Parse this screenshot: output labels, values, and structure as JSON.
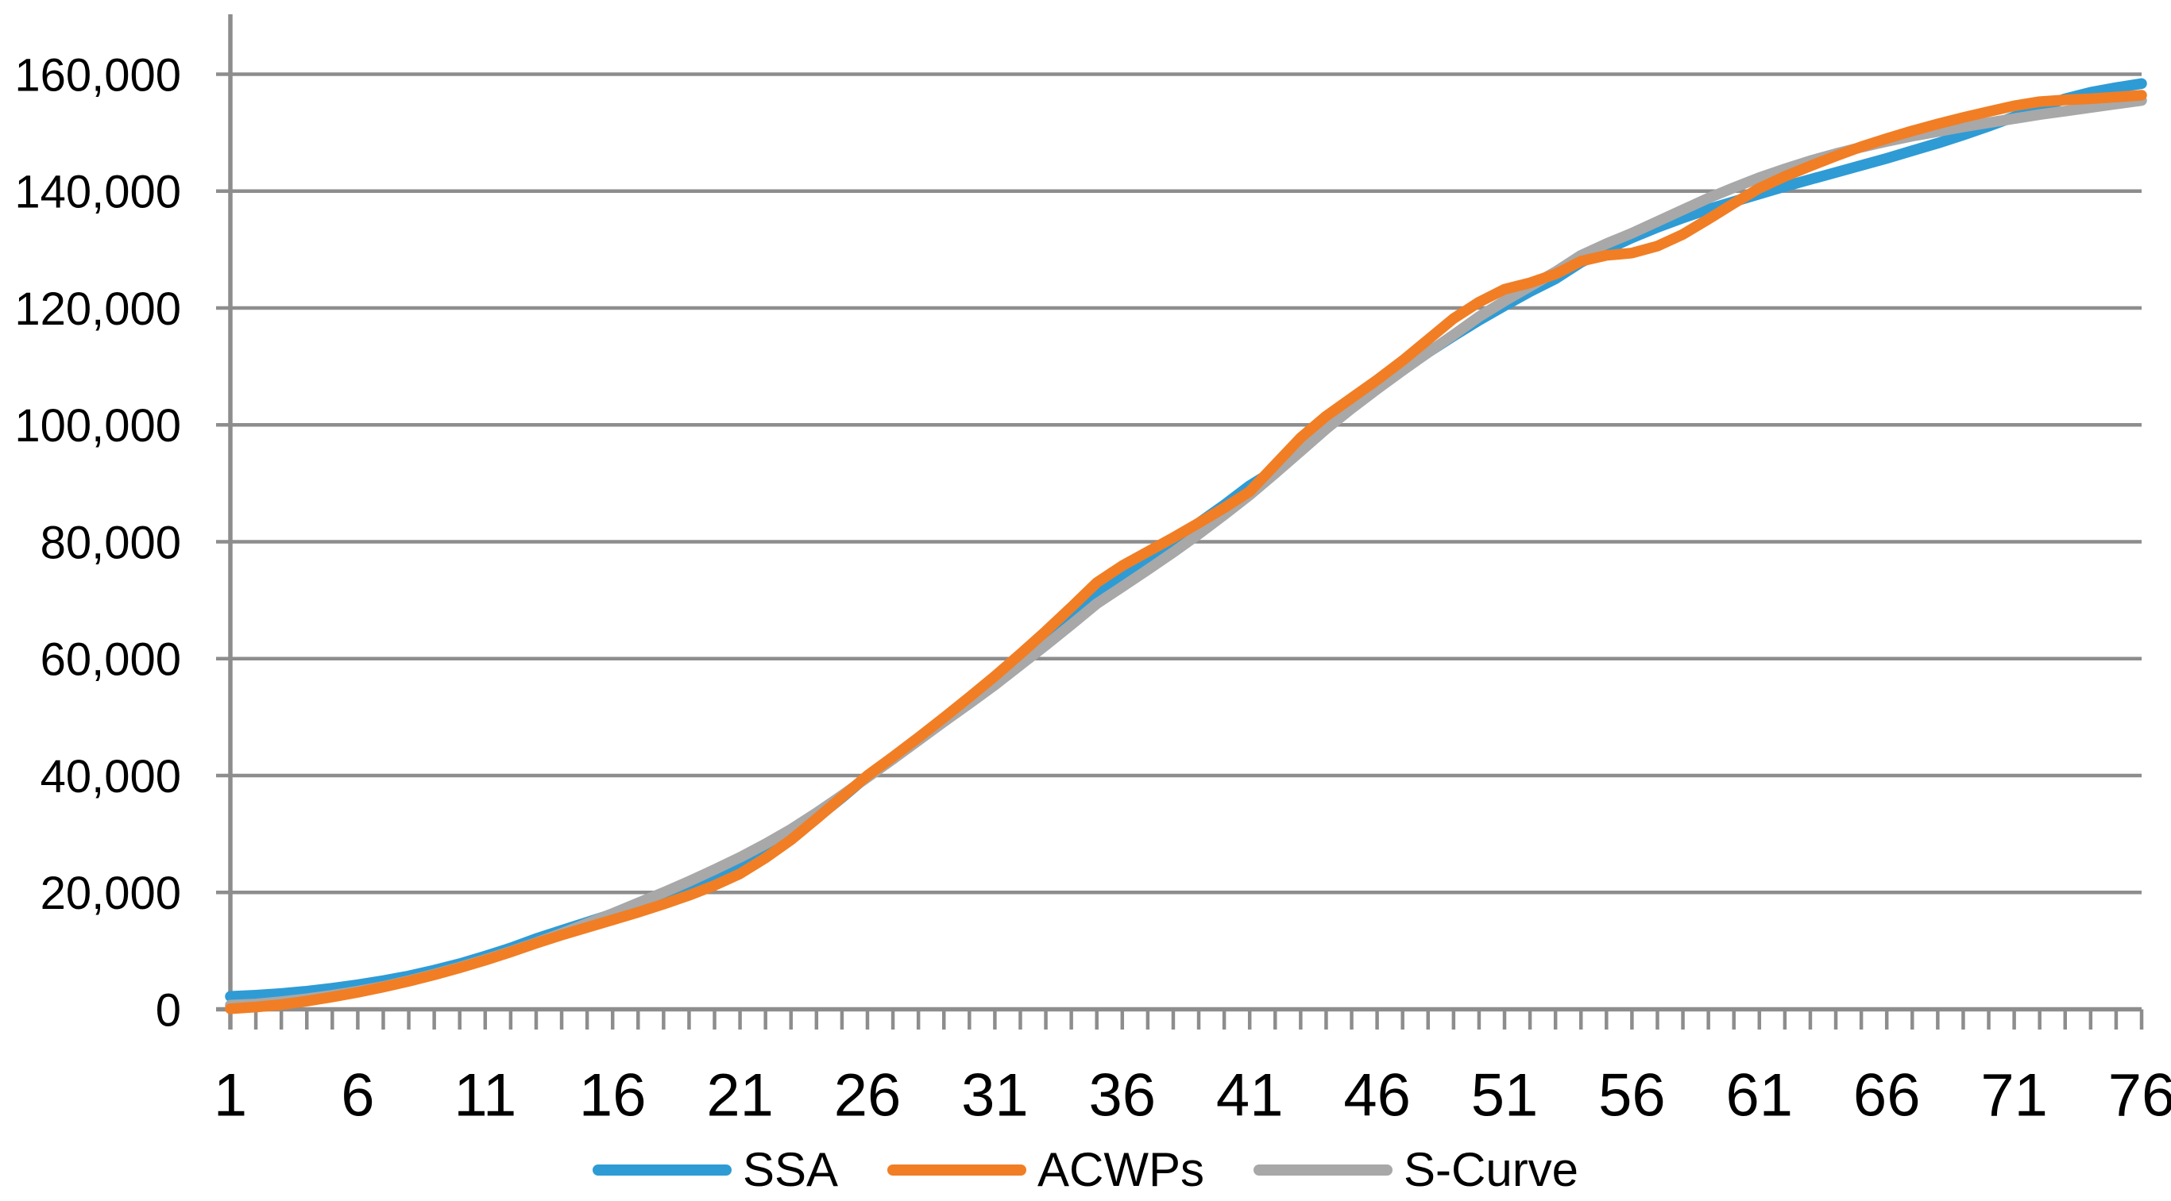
{
  "chart_data": {
    "type": "line",
    "title": "",
    "xlabel": "",
    "ylabel": "",
    "x": [
      1,
      2,
      3,
      4,
      5,
      6,
      7,
      8,
      9,
      10,
      11,
      12,
      13,
      14,
      15,
      16,
      17,
      18,
      19,
      20,
      21,
      22,
      23,
      24,
      25,
      26,
      27,
      28,
      29,
      30,
      31,
      32,
      33,
      34,
      35,
      36,
      37,
      38,
      39,
      40,
      41,
      42,
      43,
      44,
      45,
      46,
      47,
      48,
      49,
      50,
      51,
      52,
      53,
      54,
      55,
      56,
      57,
      58,
      59,
      60,
      61,
      62,
      63,
      64,
      65,
      66,
      67,
      68,
      69,
      70,
      71,
      72,
      73,
      74,
      75,
      76
    ],
    "x_tick_labels": [
      "1",
      "6",
      "11",
      "16",
      "21",
      "26",
      "31",
      "36",
      "41",
      "46",
      "51",
      "56",
      "61",
      "66",
      "71",
      "76"
    ],
    "x_tick_positions": [
      1,
      6,
      11,
      16,
      21,
      26,
      31,
      36,
      41,
      46,
      51,
      56,
      61,
      66,
      71,
      76
    ],
    "y_tick_labels": [
      "0",
      "20,000",
      "40,000",
      "60,000",
      "80,000",
      "100,000",
      "120,000",
      "140,000",
      "160,000"
    ],
    "y_tick_values": [
      0,
      20000,
      40000,
      60000,
      80000,
      100000,
      120000,
      140000,
      160000
    ],
    "ylim": [
      0,
      170000
    ],
    "grid": "horizontal",
    "legend_position": "bottom",
    "series": [
      {
        "name": "SSA",
        "color": "#2E9BD5",
        "values": [
          2200,
          2400,
          2700,
          3100,
          3600,
          4200,
          4900,
          5700,
          6700,
          7800,
          9100,
          10500,
          12100,
          13500,
          14900,
          16300,
          17700,
          19200,
          20800,
          22500,
          24500,
          26800,
          29500,
          32700,
          36200,
          39900,
          43000,
          46100,
          49400,
          52800,
          56300,
          59900,
          63500,
          67300,
          71200,
          74200,
          77200,
          80200,
          83200,
          86300,
          89600,
          92300,
          95800,
          99400,
          102900,
          106200,
          109400,
          112400,
          115200,
          117900,
          120400,
          122800,
          125000,
          127800,
          130000,
          132000,
          133800,
          135400,
          136900,
          138200,
          139500,
          140800,
          142000,
          143200,
          144400,
          145600,
          146900,
          148200,
          149600,
          151100,
          152700,
          154300,
          155800,
          156900,
          157700,
          158400
        ]
      },
      {
        "name": "ACWPs",
        "color": "#F17E24",
        "values": [
          100,
          400,
          800,
          1400,
          2100,
          2900,
          3800,
          4800,
          5900,
          7100,
          8400,
          9800,
          11300,
          12700,
          14000,
          15300,
          16600,
          18000,
          19500,
          21200,
          23200,
          25900,
          29000,
          32600,
          36300,
          40000,
          43200,
          46500,
          49900,
          53400,
          57000,
          60800,
          64700,
          68800,
          73000,
          75900,
          78300,
          80700,
          83200,
          85800,
          88600,
          93200,
          97800,
          101500,
          104600,
          107700,
          111000,
          114600,
          118200,
          121000,
          123200,
          124300,
          125800,
          128000,
          129000,
          129400,
          130600,
          132600,
          135200,
          137900,
          140500,
          142500,
          144300,
          146000,
          147600,
          149000,
          150300,
          151500,
          152600,
          153600,
          154600,
          155300,
          155600,
          155800,
          156100,
          156400
        ]
      },
      {
        "name": "S-Curve",
        "color": "#A8A8A8",
        "values": [
          700,
          900,
          1300,
          1800,
          2400,
          3100,
          3900,
          4900,
          6000,
          7200,
          8500,
          9900,
          11400,
          13000,
          14700,
          16400,
          18200,
          20000,
          21900,
          23900,
          26000,
          28300,
          30800,
          33600,
          36600,
          39700,
          42800,
          46000,
          49200,
          52300,
          55500,
          58900,
          62300,
          65800,
          69400,
          72300,
          75200,
          78200,
          81300,
          84600,
          88000,
          91700,
          95500,
          99300,
          102800,
          106100,
          109300,
          112400,
          115400,
          118500,
          121200,
          123700,
          126200,
          129000,
          131000,
          132800,
          134800,
          136800,
          138800,
          140600,
          142300,
          143800,
          145200,
          146400,
          147500,
          148500,
          149400,
          150200,
          151000,
          151700,
          152400,
          153100,
          153700,
          154300,
          154900,
          155500
        ]
      }
    ],
    "draw_order": [
      "SSA",
      "S-Curve",
      "ACWPs"
    ],
    "axis_color": "#8D8D8D",
    "text_color": "#000000",
    "background_color": "#FFFFFF"
  },
  "legend": {
    "items": [
      {
        "label": "SSA",
        "color": "#2E9BD5"
      },
      {
        "label": "ACWPs",
        "color": "#F17E24"
      },
      {
        "label": "S-Curve",
        "color": "#A8A8A8"
      }
    ]
  }
}
